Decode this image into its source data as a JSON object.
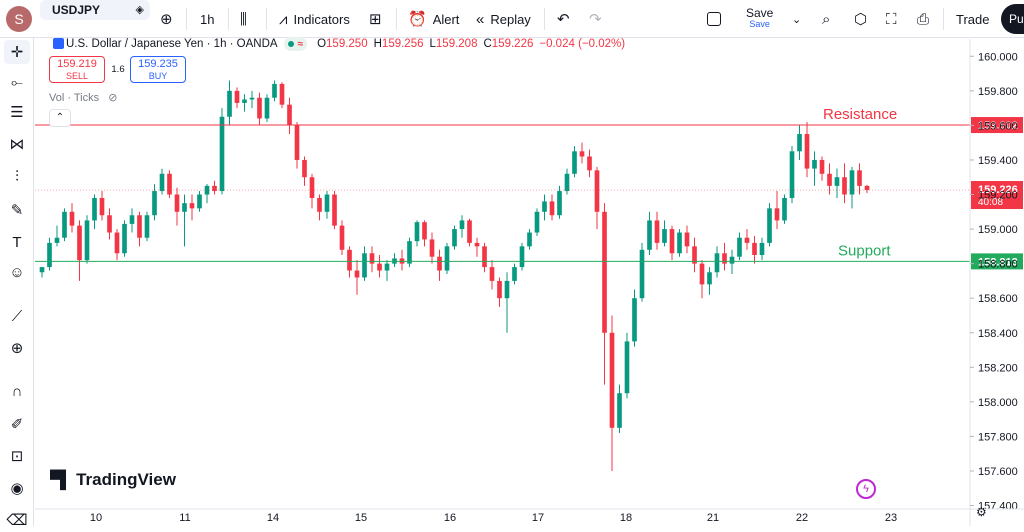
{
  "topbar": {
    "avatar_letter": "S",
    "symbol": "USDJPY",
    "interval": "1h",
    "indicators_label": "Indicators",
    "alert_label": "Alert",
    "replay_label": "Replay",
    "save_label": "Save",
    "save_sub": "Save",
    "trade_label": "Trade",
    "publish_label": "Pu"
  },
  "legend": {
    "title": "U.S. Dollar / Japanese Yen · 1h · OANDA",
    "o_label": "O",
    "o_val": "159.250",
    "h_label": "H",
    "h_val": "159.256",
    "l_label": "L",
    "l_val": "159.208",
    "c_label": "C",
    "c_val": "159.226",
    "change": "−0.024 (−0.02%)",
    "live_symbol": "≈"
  },
  "trade_panel": {
    "sell_price": "159.219",
    "sell_label": "SELL",
    "spread": "1.6",
    "buy_price": "159.235",
    "buy_label": "BUY"
  },
  "volume_label": "Vol · Ticks",
  "watermark": "TradingView",
  "colors": {
    "up": "#089981",
    "down": "#f23645",
    "resistance": "#f23645",
    "support": "#22ab5c",
    "axis_text": "#131722"
  },
  "chart_data": {
    "type": "candlestick",
    "symbol": "USDJPY",
    "timeframe": "1h",
    "ylim": [
      157.38,
      160.1
    ],
    "y_ticks": [
      "160.000",
      "159.800",
      "159.600",
      "159.400",
      "159.200",
      "159.000",
      "158.800",
      "158.600",
      "158.400",
      "158.200",
      "158.000",
      "157.800",
      "157.600",
      "157.400"
    ],
    "x_ticks": [
      "10",
      "11",
      "14",
      "15",
      "16",
      "17",
      "18",
      "21",
      "22",
      "23"
    ],
    "annotations": [
      {
        "label": "Resistance",
        "price": 159.602,
        "price_label": "159.602"
      },
      {
        "label": "Support",
        "price": 158.813,
        "price_label": "158.813"
      }
    ],
    "last_price": 159.226,
    "last_price_label": "159.226",
    "countdown": "40:08",
    "series": [
      {
        "values": [
          [
            158.75,
            158.78,
            158.72,
            158.78
          ],
          [
            158.78,
            158.95,
            158.76,
            158.92
          ],
          [
            158.92,
            159.02,
            158.9,
            158.95
          ],
          [
            158.95,
            159.12,
            158.93,
            159.1
          ],
          [
            159.1,
            159.15,
            158.98,
            159.02
          ],
          [
            159.02,
            159.05,
            158.7,
            158.82
          ],
          [
            158.82,
            159.08,
            158.8,
            159.05
          ],
          [
            159.05,
            159.2,
            159.0,
            159.18
          ],
          [
            159.18,
            159.22,
            159.05,
            159.08
          ],
          [
            159.08,
            159.12,
            158.94,
            158.98
          ],
          [
            158.98,
            159.0,
            158.82,
            158.86
          ],
          [
            158.86,
            159.05,
            158.84,
            159.03
          ],
          [
            159.03,
            159.12,
            158.98,
            159.08
          ],
          [
            159.08,
            159.1,
            158.9,
            158.95
          ],
          [
            158.95,
            159.1,
            158.93,
            159.08
          ],
          [
            159.08,
            159.26,
            159.05,
            159.22
          ],
          [
            159.22,
            159.35,
            159.2,
            159.32
          ],
          [
            159.32,
            159.34,
            159.18,
            159.2
          ],
          [
            159.2,
            159.24,
            159.02,
            159.1
          ],
          [
            159.1,
            159.2,
            158.9,
            159.15
          ],
          [
            159.15,
            159.2,
            159.05,
            159.12
          ],
          [
            159.12,
            159.22,
            159.1,
            159.2
          ],
          [
            159.2,
            159.26,
            159.15,
            159.25
          ],
          [
            159.25,
            159.28,
            159.2,
            159.22
          ],
          [
            159.22,
            159.7,
            159.2,
            159.65
          ],
          [
            159.65,
            159.86,
            159.6,
            159.8
          ],
          [
            159.8,
            159.82,
            159.7,
            159.73
          ],
          [
            159.73,
            159.78,
            159.68,
            159.75
          ],
          [
            159.75,
            159.8,
            159.7,
            159.76
          ],
          [
            159.76,
            159.79,
            159.6,
            159.64
          ],
          [
            159.64,
            159.78,
            159.62,
            159.76
          ],
          [
            159.76,
            159.86,
            159.74,
            159.84
          ],
          [
            159.84,
            159.85,
            159.7,
            159.72
          ],
          [
            159.72,
            159.76,
            159.55,
            159.6
          ],
          [
            159.6,
            159.62,
            159.35,
            159.4
          ],
          [
            159.4,
            159.42,
            159.25,
            159.3
          ],
          [
            159.3,
            159.32,
            159.12,
            159.18
          ],
          [
            159.18,
            159.2,
            159.05,
            159.1
          ],
          [
            159.1,
            159.22,
            159.06,
            159.2
          ],
          [
            159.2,
            159.22,
            159.0,
            159.02
          ],
          [
            159.02,
            159.05,
            158.85,
            158.88
          ],
          [
            158.88,
            158.9,
            158.72,
            158.76
          ],
          [
            158.76,
            158.82,
            158.62,
            158.72
          ],
          [
            158.72,
            158.9,
            158.7,
            158.86
          ],
          [
            158.86,
            158.9,
            158.75,
            158.8
          ],
          [
            158.8,
            158.85,
            158.72,
            158.76
          ],
          [
            158.76,
            158.82,
            158.7,
            158.8
          ],
          [
            158.8,
            158.86,
            158.78,
            158.83
          ],
          [
            158.83,
            158.88,
            158.76,
            158.8
          ],
          [
            158.8,
            158.95,
            158.78,
            158.93
          ],
          [
            158.93,
            159.05,
            158.9,
            159.04
          ],
          [
            159.04,
            159.05,
            158.9,
            158.94
          ],
          [
            158.94,
            158.98,
            158.8,
            158.84
          ],
          [
            158.84,
            158.88,
            158.7,
            158.76
          ],
          [
            158.76,
            158.92,
            158.74,
            158.9
          ],
          [
            158.9,
            159.02,
            158.88,
            159.0
          ],
          [
            159.0,
            159.08,
            158.95,
            159.05
          ],
          [
            159.05,
            159.06,
            158.9,
            158.92
          ],
          [
            158.92,
            158.95,
            158.84,
            158.9
          ],
          [
            158.9,
            158.92,
            158.75,
            158.78
          ],
          [
            158.78,
            158.82,
            158.65,
            158.7
          ],
          [
            158.7,
            158.72,
            158.55,
            158.6
          ],
          [
            158.6,
            158.75,
            158.4,
            158.7
          ],
          [
            158.7,
            158.8,
            158.68,
            158.78
          ],
          [
            158.78,
            158.92,
            158.76,
            158.9
          ],
          [
            158.9,
            159.0,
            158.88,
            158.98
          ],
          [
            158.98,
            159.12,
            158.96,
            159.1
          ],
          [
            159.1,
            159.2,
            159.05,
            159.16
          ],
          [
            159.16,
            159.2,
            159.05,
            159.08
          ],
          [
            159.08,
            159.25,
            159.06,
            159.22
          ],
          [
            159.22,
            159.35,
            159.2,
            159.32
          ],
          [
            159.32,
            159.48,
            159.3,
            159.45
          ],
          [
            159.45,
            159.5,
            159.38,
            159.42
          ],
          [
            159.42,
            159.46,
            159.3,
            159.34
          ],
          [
            159.34,
            159.36,
            159.0,
            159.1
          ],
          [
            159.1,
            159.15,
            158.1,
            158.4
          ],
          [
            158.4,
            158.5,
            157.6,
            157.85
          ],
          [
            157.85,
            158.1,
            157.82,
            158.05
          ],
          [
            158.05,
            158.4,
            158.02,
            158.35
          ],
          [
            158.35,
            158.65,
            158.32,
            158.6
          ],
          [
            158.6,
            158.92,
            158.58,
            158.88
          ],
          [
            158.88,
            159.1,
            158.85,
            159.05
          ],
          [
            159.05,
            159.1,
            158.88,
            158.92
          ],
          [
            158.92,
            159.05,
            158.9,
            159.0
          ],
          [
            159.0,
            159.02,
            158.82,
            158.86
          ],
          [
            158.86,
            159.0,
            158.84,
            158.98
          ],
          [
            158.98,
            159.02,
            158.86,
            158.9
          ],
          [
            158.9,
            158.95,
            158.75,
            158.8
          ],
          [
            158.8,
            158.82,
            158.6,
            158.68
          ],
          [
            158.68,
            158.78,
            158.62,
            158.75
          ],
          [
            158.75,
            158.9,
            158.72,
            158.86
          ],
          [
            158.86,
            158.92,
            158.76,
            158.8
          ],
          [
            158.8,
            158.88,
            158.74,
            158.84
          ],
          [
            158.84,
            158.98,
            158.82,
            158.95
          ],
          [
            158.95,
            159.0,
            158.88,
            158.92
          ],
          [
            158.92,
            158.96,
            158.8,
            158.85
          ],
          [
            158.85,
            158.95,
            158.82,
            158.92
          ],
          [
            158.92,
            159.15,
            158.9,
            159.12
          ],
          [
            159.12,
            159.22,
            159.0,
            159.05
          ],
          [
            159.05,
            159.2,
            159.03,
            159.18
          ],
          [
            159.18,
            159.48,
            159.15,
            159.45
          ],
          [
            159.45,
            159.6,
            159.4,
            159.55
          ],
          [
            159.55,
            159.62,
            159.3,
            159.35
          ],
          [
            159.35,
            159.45,
            159.25,
            159.4
          ],
          [
            159.4,
            159.42,
            159.28,
            159.32
          ],
          [
            159.32,
            159.38,
            159.2,
            159.25
          ],
          [
            159.25,
            159.35,
            159.18,
            159.3
          ],
          [
            159.3,
            159.38,
            159.15,
            159.2
          ],
          [
            159.2,
            159.36,
            159.12,
            159.34
          ],
          [
            159.34,
            159.38,
            159.2,
            159.25
          ],
          [
            159.25,
            159.256,
            159.208,
            159.226
          ]
        ]
      }
    ]
  }
}
